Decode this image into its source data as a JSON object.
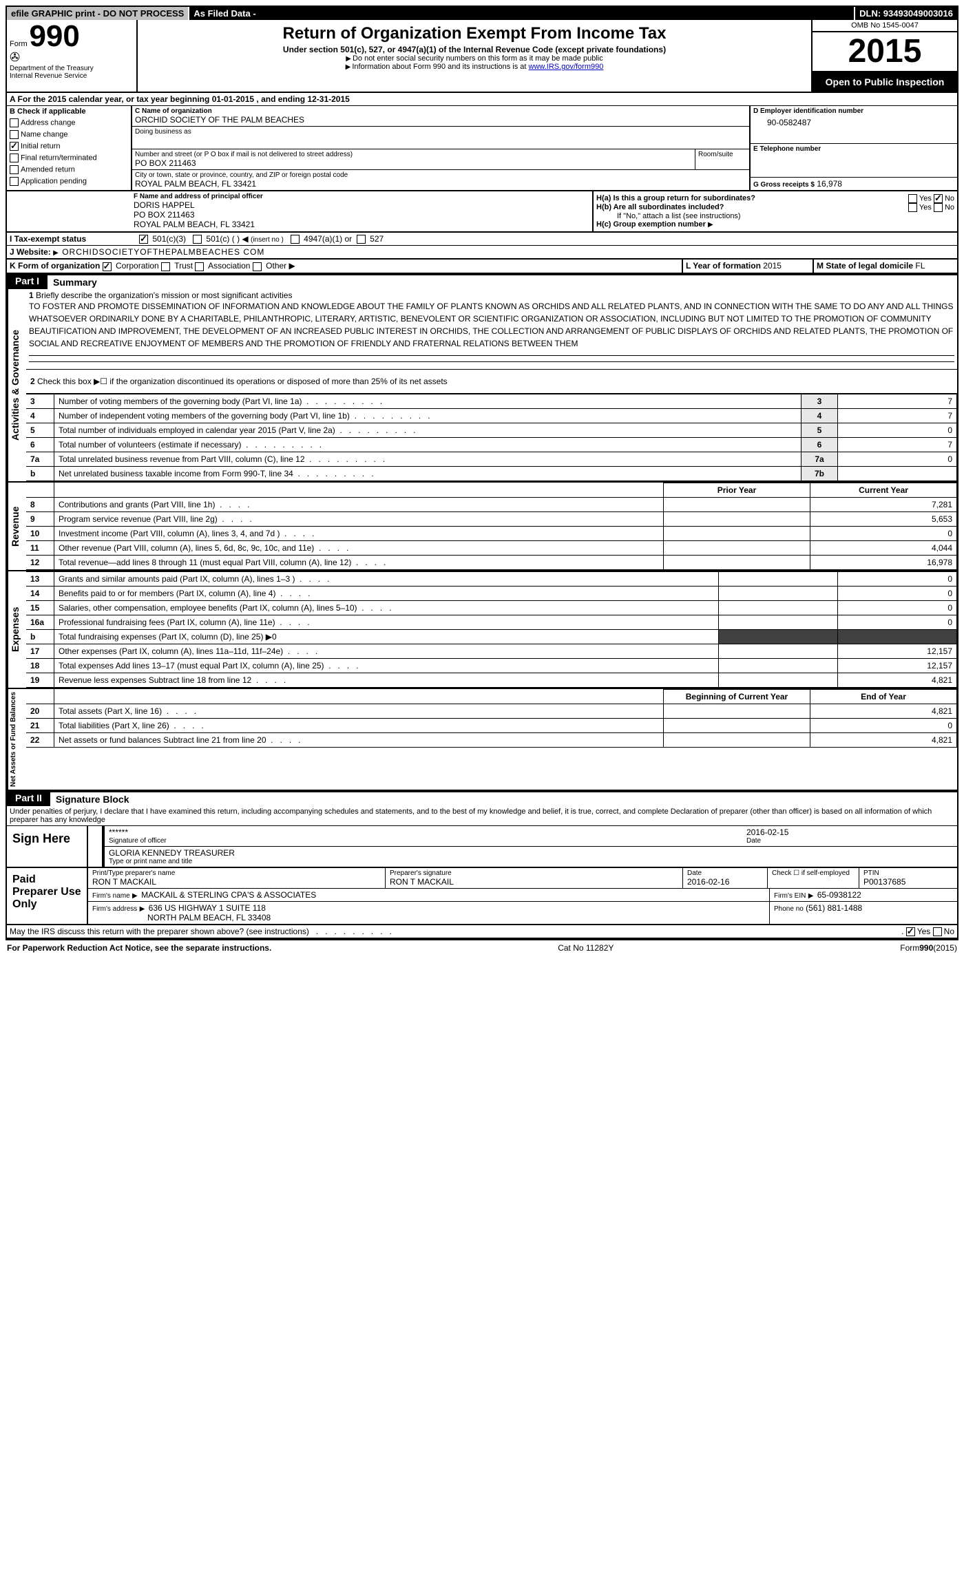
{
  "top_bar": {
    "efile": "efile GRAPHIC print - DO NOT PROCESS",
    "asfiled": "As Filed Data -",
    "dln": "DLN: 93493049003016"
  },
  "header": {
    "form_prefix": "Form",
    "form_number": "990",
    "dept": "Department of the Treasury",
    "irs": "Internal Revenue Service",
    "title": "Return of Organization Exempt From Income Tax",
    "subtitle": "Under section 501(c), 527, or 4947(a)(1) of the Internal Revenue Code (except private foundations)",
    "note1": "Do not enter social security numbers on this form as it may be made public",
    "note2_prefix": "Information about Form 990 and its instructions is at ",
    "note2_link": "www.IRS.gov/form990",
    "omb": "OMB No 1545-0047",
    "year": "2015",
    "inspection": "Open to Public Inspection"
  },
  "line_a": {
    "label": "A  For the 2015 calendar year, or tax year beginning",
    "begin": "01-01-2015",
    "mid": ", and ending",
    "end": "12-31-2015"
  },
  "section_b": {
    "label": "B  Check if applicable",
    "addr_change": "Address change",
    "name_change": "Name change",
    "initial": "Initial return",
    "final": "Final return/terminated",
    "amended": "Amended return",
    "app_pending": "Application pending"
  },
  "section_c": {
    "label": "C Name of organization",
    "org_name": "ORCHID SOCIETY OF THE PALM BEACHES",
    "dba_label": "Doing business as",
    "addr_label": "Number and street (or P O  box if mail is not delivered to street address)",
    "room_label": "Room/suite",
    "addr": "PO BOX 211463",
    "city_label": "City or town, state or province, country, and ZIP or foreign postal code",
    "city": "ROYAL PALM BEACH, FL  33421"
  },
  "section_d": {
    "label": "D Employer identification number",
    "value": "90-0582487"
  },
  "section_e": {
    "label": "E Telephone number",
    "value": ""
  },
  "section_g": {
    "label": "G Gross receipts $",
    "value": "16,978"
  },
  "section_f": {
    "label": "F   Name and address of principal officer",
    "name": "DORIS HAPPEL",
    "addr1": "PO BOX 211463",
    "addr2": "ROYAL PALM BEACH, FL  33421"
  },
  "section_h": {
    "ha_label": "H(a)  Is this a group return for subordinates?",
    "hb_label": "H(b)  Are all subordinates included?",
    "hb_note": "If \"No,\" attach a list  (see instructions)",
    "hc_label": "H(c)  Group exemption number",
    "yes": "Yes",
    "no": "No"
  },
  "line_i": {
    "label": "I   Tax-exempt status",
    "opt1": "501(c)(3)",
    "opt2": "501(c) (  )",
    "opt2_note": "(insert no )",
    "opt3": "4947(a)(1) or",
    "opt4": "527"
  },
  "line_j": {
    "label": "J  Website:",
    "value": "ORCHIDSOCIETYOFTHEPALMBEACHES COM"
  },
  "line_k": {
    "label": "K Form of organization",
    "corp": "Corporation",
    "trust": "Trust",
    "assoc": "Association",
    "other": "Other"
  },
  "line_l": {
    "label": "L Year of formation",
    "value": "2015"
  },
  "line_m": {
    "label": "M State of legal domicile",
    "value": "FL"
  },
  "part1": {
    "label": "Part I",
    "title": "Summary",
    "side_activities": "Activities & Governance",
    "side_revenue": "Revenue",
    "side_expenses": "Expenses",
    "side_net": "Net Assets or Fund Balances",
    "q1_label": "Briefly describe the organization's mission or most significant activities",
    "q1_text": "TO FOSTER AND PROMOTE DISSEMINATION OF INFORMATION AND KNOWLEDGE ABOUT THE FAMILY OF PLANTS KNOWN AS ORCHIDS AND ALL RELATED PLANTS, AND IN CONNECTION WITH THE SAME TO DO ANY AND ALL THINGS WHATSOEVER ORDINARILY DONE BY A CHARITABLE, PHILANTHROPIC, LITERARY, ARTISTIC, BENEVOLENT OR SCIENTIFIC ORGANIZATION OR ASSOCIATION, INCLUDING BUT NOT LIMITED TO THE PROMOTION OF COMMUNITY BEAUTIFICATION AND IMPROVEMENT, THE DEVELOPMENT OF AN INCREASED PUBLIC INTEREST IN ORCHIDS, THE COLLECTION AND ARRANGEMENT OF PUBLIC DISPLAYS OF ORCHIDS AND RELATED PLANTS, THE PROMOTION OF SOCIAL AND RECREATIVE ENJOYMENT OF MEMBERS AND THE PROMOTION OF FRIENDLY AND FRATERNAL RELATIONS BETWEEN THEM",
    "q2": "Check this box ▶☐ if the organization discontinued its operations or disposed of more than 25% of its net assets",
    "rows_gov": [
      {
        "n": "3",
        "d": "Number of voting members of the governing body (Part VI, line 1a)",
        "box": "3",
        "v": "7"
      },
      {
        "n": "4",
        "d": "Number of independent voting members of the governing body (Part VI, line 1b)",
        "box": "4",
        "v": "7"
      },
      {
        "n": "5",
        "d": "Total number of individuals employed in calendar year 2015 (Part V, line 2a)",
        "box": "5",
        "v": "0"
      },
      {
        "n": "6",
        "d": "Total number of volunteers (estimate if necessary)",
        "box": "6",
        "v": "7"
      },
      {
        "n": "7a",
        "d": "Total unrelated business revenue from Part VIII, column (C), line 12",
        "box": "7a",
        "v": "0"
      },
      {
        "n": "b",
        "d": "Net unrelated business taxable income from Form 990-T, line 34",
        "box": "7b",
        "v": ""
      }
    ],
    "prior_year": "Prior Year",
    "current_year": "Current Year",
    "rows_rev": [
      {
        "n": "8",
        "d": "Contributions and grants (Part VIII, line 1h)",
        "p": "",
        "c": "7,281"
      },
      {
        "n": "9",
        "d": "Program service revenue (Part VIII, line 2g)",
        "p": "",
        "c": "5,653"
      },
      {
        "n": "10",
        "d": "Investment income (Part VIII, column (A), lines 3, 4, and 7d )",
        "p": "",
        "c": "0"
      },
      {
        "n": "11",
        "d": "Other revenue (Part VIII, column (A), lines 5, 6d, 8c, 9c, 10c, and 11e)",
        "p": "",
        "c": "4,044"
      },
      {
        "n": "12",
        "d": "Total revenue—add lines 8 through 11 (must equal Part VIII, column (A), line 12)",
        "p": "",
        "c": "16,978"
      }
    ],
    "rows_exp": [
      {
        "n": "13",
        "d": "Grants and similar amounts paid (Part IX, column (A), lines 1–3 )",
        "p": "",
        "c": "0"
      },
      {
        "n": "14",
        "d": "Benefits paid to or for members (Part IX, column (A), line 4)",
        "p": "",
        "c": "0"
      },
      {
        "n": "15",
        "d": "Salaries, other compensation, employee benefits (Part IX, column (A), lines 5–10)",
        "p": "",
        "c": "0"
      },
      {
        "n": "16a",
        "d": "Professional fundraising fees (Part IX, column (A), line 11e)",
        "p": "",
        "c": "0"
      },
      {
        "n": "b",
        "d": "Total fundraising expenses (Part IX, column (D), line 25) ▶0",
        "p": "shade",
        "c": "shade"
      },
      {
        "n": "17",
        "d": "Other expenses (Part IX, column (A), lines 11a–11d, 11f–24e)",
        "p": "",
        "c": "12,157"
      },
      {
        "n": "18",
        "d": "Total expenses  Add lines 13–17 (must equal Part IX, column (A), line 25)",
        "p": "",
        "c": "12,157"
      },
      {
        "n": "19",
        "d": "Revenue less expenses  Subtract line 18 from line 12",
        "p": "",
        "c": "4,821"
      }
    ],
    "begin_year": "Beginning of Current Year",
    "end_year": "End of Year",
    "rows_net": [
      {
        "n": "20",
        "d": "Total assets (Part X, line 16)",
        "p": "",
        "c": "4,821"
      },
      {
        "n": "21",
        "d": "Total liabilities (Part X, line 26)",
        "p": "",
        "c": "0"
      },
      {
        "n": "22",
        "d": "Net assets or fund balances  Subtract line 21 from line 20",
        "p": "",
        "c": "4,821"
      }
    ]
  },
  "part2": {
    "label": "Part II",
    "title": "Signature Block",
    "perjury": "Under penalties of perjury, I declare that I have examined this return, including accompanying schedules and statements, and to the best of my knowledge and belief, it is true, correct, and complete  Declaration of preparer (other than officer) is based on all information of which preparer has any knowledge",
    "sign_here": "Sign Here",
    "sig_stars": "******",
    "sig_officer": "Signature of officer",
    "sig_date": "2016-02-15",
    "date_label": "Date",
    "officer_name": "GLORIA KENNEDY TREASURER",
    "type_name": "Type or print name and title",
    "paid": "Paid Preparer Use Only",
    "prep_name_label": "Print/Type preparer's name",
    "prep_name": "RON T MACKAIL",
    "prep_sig_label": "Preparer's signature",
    "prep_sig": "RON T MACKAIL",
    "prep_date_label": "Date",
    "prep_date": "2016-02-16",
    "self_emp": "Check ☐ if self-employed",
    "ptin_label": "PTIN",
    "ptin": "P00137685",
    "firm_name_label": "Firm's name",
    "firm_name": "MACKAIL & STERLING CPA'S & ASSOCIATES",
    "firm_ein_label": "Firm's EIN",
    "firm_ein": "65-0938122",
    "firm_addr_label": "Firm's address",
    "firm_addr1": "636 US HIGHWAY 1 SUITE 118",
    "firm_addr2": "NORTH PALM BEACH, FL  33408",
    "phone_label": "Phone no",
    "phone": "(561) 881-1488",
    "discuss": "May the IRS discuss this return with the preparer shown above? (see instructions)",
    "yes": "Yes",
    "no": "No"
  },
  "footer": {
    "left": "For Paperwork Reduction Act Notice, see the separate instructions.",
    "mid": "Cat No 11282Y",
    "right": "Form990(2015)"
  }
}
